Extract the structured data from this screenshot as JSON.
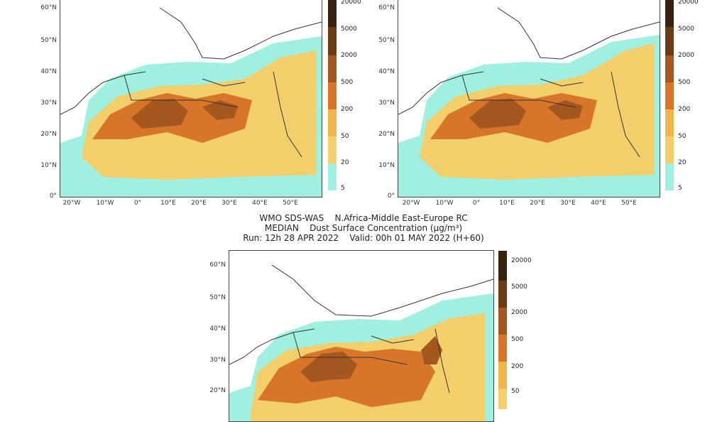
{
  "title": {
    "line1": "WMO SDS-WAS    N.Africa-Middle East-Europe RC",
    "line2": "MEDIAN    Dust Surface Concentration (µg/m³)",
    "line3": "Run: 12h 28 APR 2022    Valid: 00h 01 MAY 2022 (H+60)"
  },
  "lat_labels": [
    "60°N",
    "50°N",
    "40°N",
    "30°N",
    "20°N",
    "10°N",
    "0°"
  ],
  "lon_labels": [
    "20°W",
    "10°W",
    "0°",
    "10°E",
    "20°E",
    "30°E",
    "40°E",
    "50°E"
  ],
  "colorbar_labels": [
    "20000",
    "5000",
    "2000",
    "500",
    "200",
    "50",
    "20",
    "5"
  ],
  "colors": {
    "level_5_20": "#7fe3d2",
    "level_20_50": "#9ff0e0",
    "level_50_200": "#f2cf6b",
    "level_200_500": "#f0b64b",
    "level_500_2000": "#d7762b",
    "level_2000_5000": "#a4571f",
    "level_5000_20000": "#6b3b17",
    "level_over_20000": "#3a2210",
    "coast": "#333333"
  }
}
